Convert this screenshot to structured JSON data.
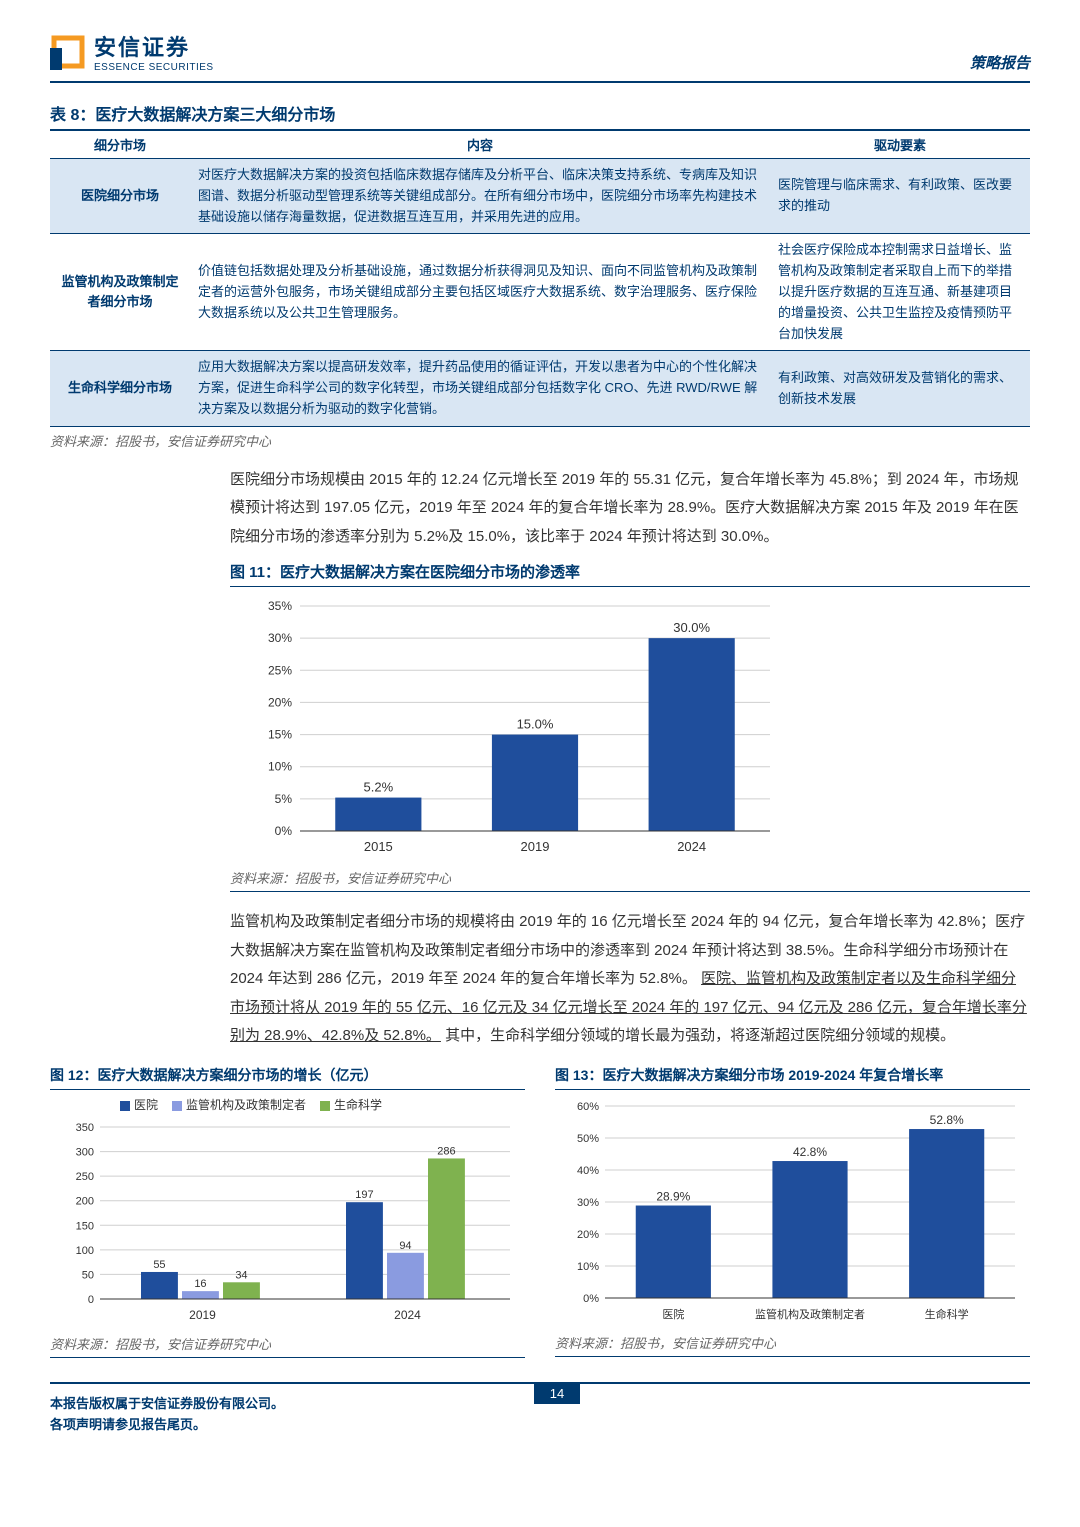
{
  "header": {
    "brand_cn": "安信证券",
    "brand_en": "ESSENCE SECURITIES",
    "doc_type": "策略报告"
  },
  "table8": {
    "title": "表 8：医疗大数据解决方案三大细分市场",
    "headers": [
      "细分市场",
      "内容",
      "驱动要素"
    ],
    "rows": [
      {
        "c0": "医院细分市场",
        "c1": "对医疗大数据解决方案的投资包括临床数据存储库及分析平台、临床决策支持系统、专病库及知识图谱、数据分析驱动型管理系统等关键组成部分。在所有细分市场中，医院细分市场率先构建技术基础设施以储存海量数据，促进数据互连互用，并采用先进的应用。",
        "c2": "医院管理与临床需求、有利政策、医改要求的推动"
      },
      {
        "c0": "监管机构及政策制定者细分市场",
        "c1": "价值链包括数据处理及分析基础设施，通过数据分析获得洞见及知识、面向不同监管机构及政策制定者的运营外包服务，市场关键组成部分主要包括区域医疗大数据系统、数字治理服务、医疗保险大数据系统以及公共卫生管理服务。",
        "c2": "社会医疗保险成本控制需求日益增长、监管机构及政策制定者采取自上而下的举措以提升医疗数据的互连互通、新基建项目的增量投资、公共卫生监控及疫情预防平台加快发展"
      },
      {
        "c0": "生命科学细分市场",
        "c1": "应用大数据解决方案以提高研发效率，提升药品使用的循证评估，开发以患者为中心的个性化解决方案，促进生命科学公司的数字化转型，市场关键组成部分包括数字化 CRO、先进 RWD/RWE 解决方案及以数据分析为驱动的数字化营销。",
        "c2": "有利政策、对高效研发及营销化的需求、创新技术发展"
      }
    ],
    "source": "资料来源：招股书，安信证券研究中心"
  },
  "para1": "医院细分市场规模由 2015 年的 12.24 亿元增长至 2019 年的 55.31 亿元，复合年增长率为 45.8%；到 2024 年，市场规模预计将达到 197.05 亿元，2019 年至 2024 年的复合年增长率为 28.9%。医疗大数据解决方案 2015 年及 2019 年在医院细分市场的渗透率分别为 5.2%及 15.0%，该比率于 2024 年预计将达到 30.0%。",
  "fig11": {
    "title": "图 11：医疗大数据解决方案在医院细分市场的渗透率",
    "type": "bar",
    "ylim": [
      0,
      35
    ],
    "ytick_step": 5,
    "categories": [
      "2015",
      "2019",
      "2024"
    ],
    "values": [
      5.2,
      15.0,
      30.0
    ],
    "value_labels": [
      "5.2%",
      "15.0%",
      "30.0%"
    ],
    "bar_color": "#1f4e9c",
    "grid_color": "#cfcfcf",
    "text_color": "#333",
    "source": "资料来源：招股书，安信证券研究中心"
  },
  "para2_plain": "监管机构及政策制定者细分市场的规模将由 2019 年的 16 亿元增长至 2024 年的 94 亿元，复合年增长率为 42.8%；医疗大数据解决方案在监管机构及政策制定者细分市场中的渗透率到 2024 年预计将达到 38.5%。生命科学细分市场预计在 2024 年达到 286 亿元，2019 年至 2024 年的复合年增长率为 52.8%。",
  "para2_u": "医院、监管机构及政策制定者以及生命科学细分市场预计将从 2019 年的 55 亿元、16 亿元及 34 亿元增长至 2024 年的 197 亿元、94 亿元及 286 亿元，复合年增长率分别为 28.9%、42.8%及 52.8%。",
  "para2_tail": "其中，生命科学细分领域的增长最为强劲，将逐渐超过医院细分领域的规模。",
  "fig12": {
    "title": "图 12：医疗大数据解决方案细分市场的增长（亿元）",
    "type": "grouped_bar",
    "ylim": [
      0,
      350
    ],
    "ytick_step": 50,
    "categories": [
      "2019",
      "2024"
    ],
    "series": [
      {
        "name": "医院",
        "color": "#1f4e9c",
        "values": [
          55,
          197
        ]
      },
      {
        "name": "监管机构及政策制定者",
        "color": "#8a9be0",
        "values": [
          16,
          94
        ]
      },
      {
        "name": "生命科学",
        "color": "#7fb24f",
        "values": [
          34,
          286
        ]
      }
    ],
    "source": "资料来源：招股书，安信证券研究中心"
  },
  "fig13": {
    "title": "图 13：医疗大数据解决方案细分市场 2019-2024 年复合增长率",
    "type": "bar",
    "ylim": [
      0,
      60
    ],
    "ytick_step": 10,
    "categories": [
      "医院",
      "监管机构及政策制定者",
      "生命科学"
    ],
    "values": [
      28.9,
      42.8,
      52.8
    ],
    "value_labels": [
      "28.9%",
      "42.8%",
      "52.8%"
    ],
    "bar_color": "#1f4e9c",
    "source": "资料来源：招股书，安信证券研究中心"
  },
  "footer": {
    "l1": "本报告版权属于安信证券股份有限公司。",
    "l2": "各项声明请参见报告尾页。",
    "page": "14"
  }
}
